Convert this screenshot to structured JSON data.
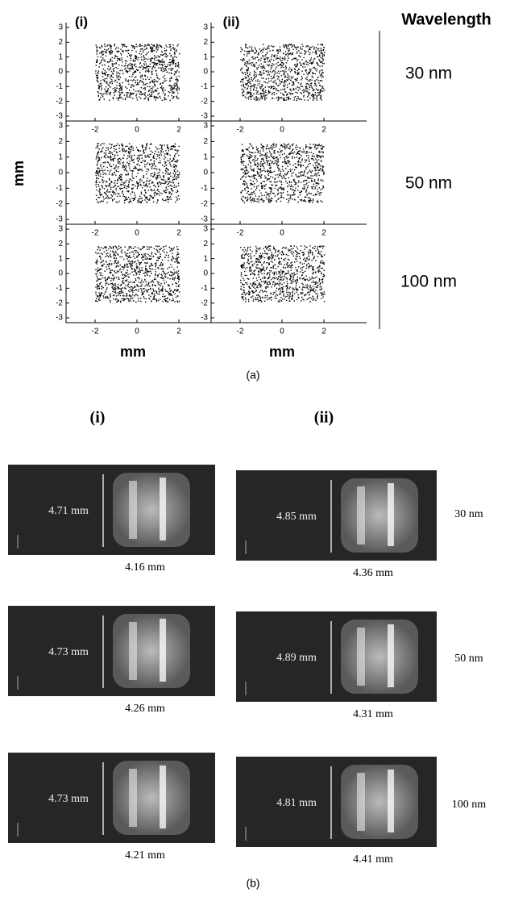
{
  "panel_a": {
    "label": "(a)",
    "columns": [
      "(i)",
      "(ii)"
    ],
    "header": "Wavelength",
    "rows": [
      "30 nm",
      "50 nm",
      "100 nm"
    ],
    "y_axis_label": "mm",
    "x_axis_label": "mm",
    "yticks": [
      3,
      2,
      1,
      0,
      -1,
      -2,
      -3
    ],
    "xticks": [
      -2,
      0,
      2
    ]
  },
  "panel_b": {
    "label": "(b)",
    "columns": [
      "(i)",
      "(ii)"
    ],
    "rows": [
      {
        "wavelength": "30 nm",
        "images": [
          {
            "height": "4.71 mm",
            "width": "4.16 mm"
          },
          {
            "height": "4.85 mm",
            "width": "4.36 mm"
          }
        ]
      },
      {
        "wavelength": "50 nm",
        "images": [
          {
            "height": "4.73 mm",
            "width": "4.26 mm"
          },
          {
            "height": "4.89 mm",
            "width": "4.31 mm"
          }
        ]
      },
      {
        "wavelength": "100 nm",
        "images": [
          {
            "height": "4.73 mm",
            "width": "4.21 mm"
          },
          {
            "height": "4.81 mm",
            "width": "4.41 mm"
          }
        ]
      }
    ]
  }
}
